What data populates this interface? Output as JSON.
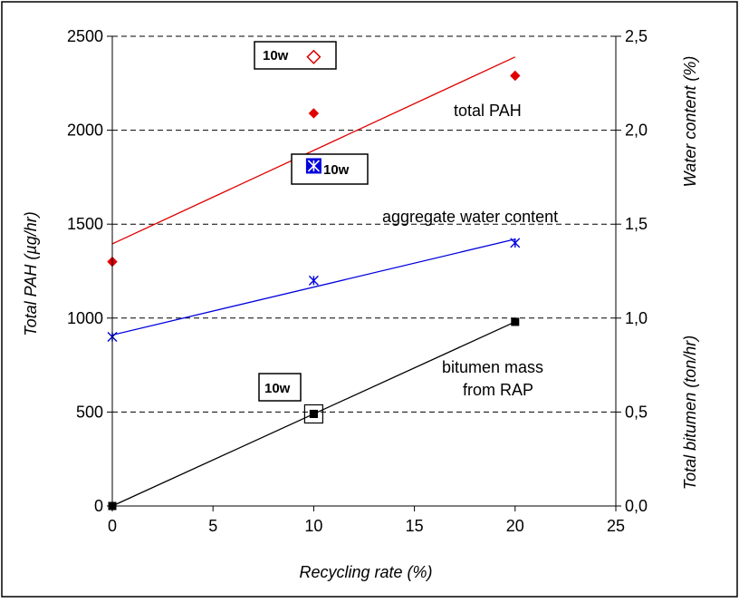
{
  "chart_data": {
    "type": "scatter",
    "xlabel": "Recycling rate (%)",
    "ylabel": "Total PAH (µg/hr)",
    "xlim": [
      0,
      25
    ],
    "ylim": [
      0,
      2500
    ],
    "xticks": [
      "0",
      "5",
      "10",
      "15",
      "20",
      "25"
    ],
    "yticks": [
      "0",
      "500",
      "1000",
      "1500",
      "2000",
      "2500"
    ],
    "y2_ticks": [
      "0,0",
      "0,5",
      "1,0",
      "1,5",
      "2,0",
      "2,5"
    ],
    "y2_water_label": "Water content (%)",
    "y2_bitumen_label": "Total bitumen (ton/hr)",
    "grid": "horizontal-dashed",
    "series": [
      {
        "key": "pah",
        "label": "total PAH",
        "color": "#e00000",
        "marker": "diamond",
        "x": [
          0,
          10,
          20
        ],
        "y": [
          1300,
          2090,
          2290
        ],
        "trend": [
          [
            0,
            1395
          ],
          [
            20,
            2390
          ]
        ]
      },
      {
        "key": "water",
        "label": "aggregate water content",
        "color": "#0000dd",
        "marker": "asterisk",
        "x": [
          0,
          10,
          20
        ],
        "y": [
          0.9,
          1.2,
          1.4
        ],
        "trend": [
          [
            0,
            0.91
          ],
          [
            20,
            1.42
          ]
        ]
      },
      {
        "key": "bitumen",
        "label_line1": "bitumen mass",
        "label_line2": "from RAP",
        "color": "#000000",
        "marker": "square",
        "x": [
          0,
          10,
          20
        ],
        "y": [
          0.0,
          0.49,
          0.98
        ],
        "trend": [
          [
            0,
            0.0
          ],
          [
            20,
            0.98
          ]
        ]
      }
    ],
    "highlight_points": [
      {
        "key": "pah",
        "x": 10,
        "y": 2390,
        "label": "10w"
      },
      {
        "key": "water",
        "x": 10,
        "y": 1.81,
        "label": "10w"
      },
      {
        "key": "bitumen",
        "x": 10,
        "y": 0.49,
        "label": "10w"
      }
    ]
  }
}
